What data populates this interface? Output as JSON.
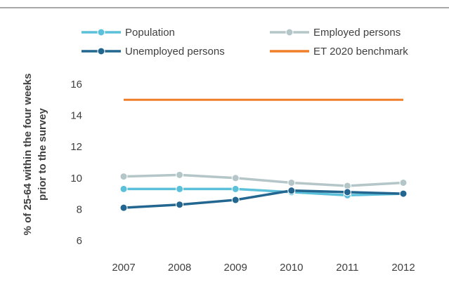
{
  "chart_data": {
    "type": "line",
    "title": "",
    "xlabel": "",
    "ylabel_lines": [
      "% of  25-64 within the four weeks",
      "prior to the survey"
    ],
    "x": [
      "2007",
      "2008",
      "2009",
      "2010",
      "2011",
      "2012"
    ],
    "ylim": [
      6,
      16
    ],
    "yticks": [
      "6",
      "8",
      "10",
      "12",
      "14",
      "16"
    ],
    "grid": false,
    "legend_position": "top",
    "series": [
      {
        "name": "Population",
        "values": [
          9.3,
          9.3,
          9.3,
          9.1,
          8.9,
          9.0
        ],
        "color": "#5BC0D9",
        "marker": true
      },
      {
        "name": "Employed persons",
        "values": [
          10.1,
          10.2,
          10.0,
          9.7,
          9.5,
          9.7
        ],
        "color": "#B4C6C8",
        "marker": true
      },
      {
        "name": "Unemployed persons",
        "values": [
          8.1,
          8.3,
          8.6,
          9.2,
          9.1,
          9.0
        ],
        "color": "#236690",
        "marker": true
      },
      {
        "name": "ET 2020 benchmark",
        "values": [
          15,
          15,
          15,
          15,
          15,
          15
        ],
        "color": "#F07F2B",
        "marker": false
      }
    ]
  }
}
